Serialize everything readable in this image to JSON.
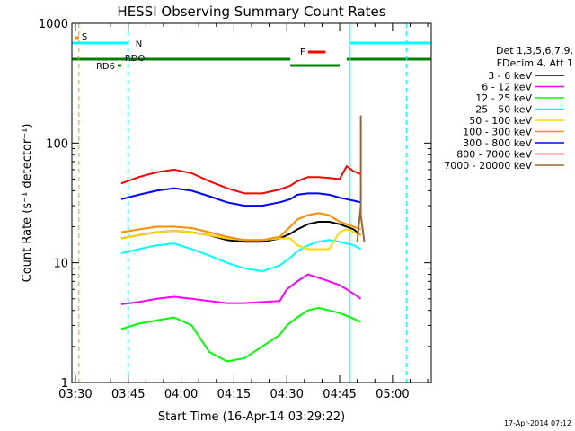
{
  "chart_data": {
    "type": "line",
    "title": "HESSI Observing Summary Count Rates",
    "xlabel": "Start Time (16-Apr-14 03:29:22)",
    "ylabel": "Count Rate (s⁻¹ detector⁻¹)",
    "y_scale": "log",
    "ylim": [
      1,
      1000
    ],
    "xlim": [
      "03:29",
      "05:11"
    ],
    "x_ticks": [
      "03:30",
      "03:45",
      "04:00",
      "04:15",
      "04:30",
      "04:45",
      "05:00"
    ],
    "y_ticks": [
      "1",
      "10",
      "100",
      "1000"
    ],
    "legend": {
      "header": [
        "Det 1,3,5,6,7,9,",
        "FDecim 4, Att 1"
      ],
      "placement": "right"
    },
    "series": [
      {
        "name": "3 - 6 keV",
        "color": "#000000",
        "x": [
          "03:43",
          "03:48",
          "03:53",
          "03:58",
          "04:03",
          "04:08",
          "04:13",
          "04:18",
          "04:23",
          "04:28",
          "04:31",
          "04:33",
          "04:36",
          "04:39",
          "04:42",
          "04:45",
          "04:47",
          "04:49",
          "04:51"
        ],
        "y": [
          16,
          17,
          18,
          18.5,
          18,
          17,
          15.5,
          15,
          15,
          16,
          17.5,
          19,
          21,
          22,
          22,
          21,
          20,
          19,
          17
        ]
      },
      {
        "name": "6 - 12 keV",
        "color": "#ff00ff",
        "x": [
          "03:43",
          "03:48",
          "03:53",
          "03:58",
          "04:03",
          "04:08",
          "04:13",
          "04:18",
          "04:23",
          "04:28",
          "04:30",
          "04:33",
          "04:36",
          "04:39",
          "04:42",
          "04:45",
          "04:47",
          "04:49",
          "04:51"
        ],
        "y": [
          4.5,
          4.7,
          5,
          5.2,
          5,
          4.8,
          4.6,
          4.6,
          4.7,
          4.8,
          6,
          7,
          8,
          7.5,
          7,
          6.5,
          6,
          5.5,
          5
        ]
      },
      {
        "name": "12 - 25 keV",
        "color": "#00ff00",
        "x": [
          "03:43",
          "03:48",
          "03:53",
          "03:58",
          "04:03",
          "04:08",
          "04:13",
          "04:18",
          "04:23",
          "04:28",
          "04:30",
          "04:33",
          "04:36",
          "04:39",
          "04:42",
          "04:45",
          "04:47",
          "04:49",
          "04:51"
        ],
        "y": [
          2.8,
          3.1,
          3.3,
          3.5,
          3,
          1.8,
          1.5,
          1.6,
          2,
          2.5,
          3,
          3.5,
          4,
          4.2,
          4,
          3.8,
          3.6,
          3.4,
          3.2
        ]
      },
      {
        "name": "25 - 50 keV",
        "color": "#00ffff",
        "x": [
          "03:43",
          "03:48",
          "03:53",
          "03:58",
          "04:03",
          "04:08",
          "04:13",
          "04:18",
          "04:23",
          "04:28",
          "04:31",
          "04:33",
          "04:36",
          "04:39",
          "04:42",
          "04:45",
          "04:47",
          "04:49",
          "04:51"
        ],
        "y": [
          12,
          13,
          14,
          14.5,
          13,
          11.5,
          10,
          9,
          8.5,
          9.5,
          11,
          12.5,
          14,
          15,
          15.5,
          15,
          14.5,
          14,
          13
        ]
      },
      {
        "name": "50 - 100 keV",
        "color": "#ffd700",
        "x": [
          "03:43",
          "03:48",
          "03:53",
          "03:58",
          "04:03",
          "04:08",
          "04:13",
          "04:18",
          "04:23",
          "04:28",
          "04:31",
          "04:33",
          "04:36",
          "04:39",
          "04:42",
          "04:45",
          "04:47",
          "04:49",
          "04:51"
        ],
        "y": [
          16,
          17,
          18,
          18.5,
          18,
          17,
          16,
          15.5,
          15.5,
          16,
          16,
          14,
          13,
          13,
          13,
          18,
          19,
          18,
          17
        ]
      },
      {
        "name": "100 - 300 keV",
        "color": "#ff8c00",
        "x": [
          "03:43",
          "03:48",
          "03:53",
          "03:58",
          "04:03",
          "04:08",
          "04:13",
          "04:18",
          "04:23",
          "04:28",
          "04:31",
          "04:33",
          "04:36",
          "04:39",
          "04:42",
          "04:45",
          "04:47",
          "04:49",
          "04:51"
        ],
        "y": [
          18,
          19,
          20,
          20,
          19.5,
          18,
          16.5,
          15.5,
          15.5,
          16.5,
          20,
          23,
          25,
          26,
          25,
          22,
          21,
          20,
          19
        ]
      },
      {
        "name": "300 - 800 keV",
        "color": "#0000ff",
        "x": [
          "03:43",
          "03:48",
          "03:53",
          "03:58",
          "04:03",
          "04:08",
          "04:13",
          "04:18",
          "04:23",
          "04:28",
          "04:31",
          "04:33",
          "04:36",
          "04:39",
          "04:42",
          "04:45",
          "04:47",
          "04:49",
          "04:51"
        ],
        "y": [
          34,
          37,
          40,
          42,
          40,
          36,
          32,
          30,
          30,
          32,
          34,
          37,
          38,
          38,
          37,
          35,
          34,
          33,
          32
        ]
      },
      {
        "name": "800 - 7000 keV",
        "color": "#ff0000",
        "x": [
          "03:43",
          "03:48",
          "03:53",
          "03:58",
          "04:03",
          "04:08",
          "04:13",
          "04:18",
          "04:23",
          "04:28",
          "04:31",
          "04:33",
          "04:36",
          "04:39",
          "04:42",
          "04:45",
          "04:47",
          "04:49",
          "04:51"
        ],
        "y": [
          46,
          52,
          57,
          60,
          56,
          48,
          42,
          38,
          38,
          41,
          44,
          48,
          52,
          52,
          51,
          50,
          64,
          58,
          55
        ]
      },
      {
        "name": "7000 - 20000 keV",
        "color": "#996633",
        "x": [
          "04:50",
          "04:51",
          "04:51",
          "04:51",
          "04:52"
        ],
        "y": [
          15,
          30,
          170,
          25,
          15
        ]
      }
    ],
    "flags": [
      {
        "label": "S",
        "color": "#ff8c00",
        "segments": [
          [
            "03:30",
            "03:31"
          ]
        ]
      },
      {
        "label": "N",
        "color": "#00ffff",
        "segments": [
          [
            "03:29",
            "03:45"
          ],
          [
            "04:48",
            "05:11"
          ]
        ]
      },
      {
        "label": "RDO",
        "color": "#008000",
        "segments": [
          [
            "03:29",
            "04:31"
          ],
          [
            "04:31",
            "04:45"
          ],
          [
            "04:47",
            "05:11"
          ]
        ]
      },
      {
        "label": "RD6",
        "color": "#008000",
        "segments": [
          [
            "03:42",
            "03:43"
          ]
        ]
      },
      {
        "label": "F",
        "color": "#ff0000",
        "segments": [
          [
            "04:36",
            "04:38"
          ],
          [
            "04:38",
            "04:41"
          ]
        ]
      }
    ],
    "vertical_lines": [
      {
        "x": "03:29",
        "color": "#00ffff",
        "style": "solid"
      },
      {
        "x": "03:31",
        "color": "#ff8c00",
        "style": "dashed"
      },
      {
        "x": "03:45",
        "color": "#00ffff",
        "style": "dashed"
      },
      {
        "x": "04:48",
        "color": "#00ffff",
        "style": "solid"
      },
      {
        "x": "05:04",
        "color": "#00ffff",
        "style": "dashed"
      }
    ],
    "footer": "17-Apr-2014 07:12"
  }
}
